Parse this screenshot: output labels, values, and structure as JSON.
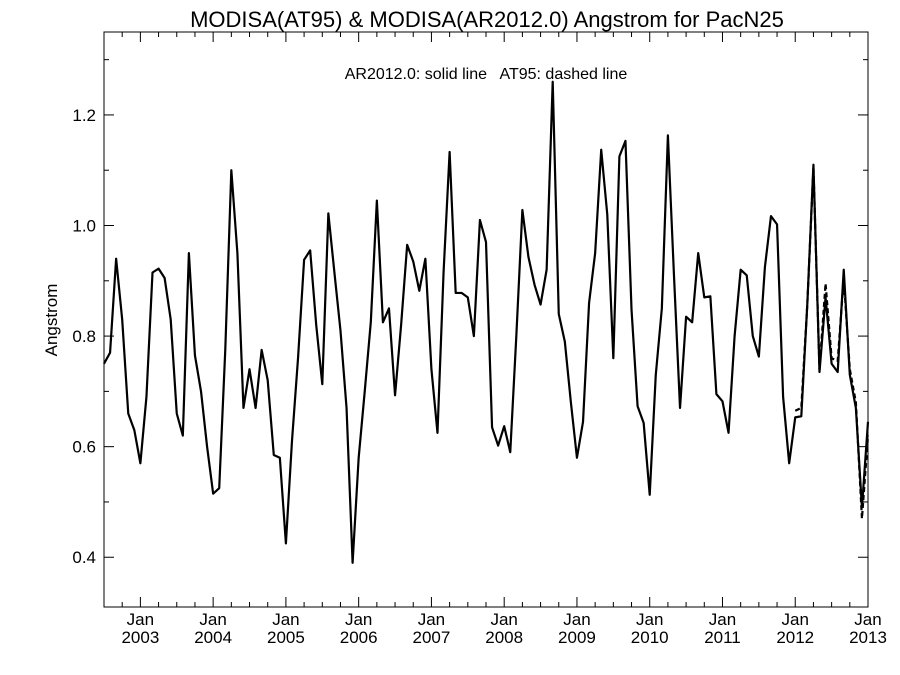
{
  "chart_data": {
    "type": "line",
    "title": "MODISA(AT95) & MODISA(AR2012.0)  Angstrom for PacN25",
    "ylabel": "Angstrom",
    "xlabel": "",
    "annotation": "AR2012.0: solid line   AT95: dashed line",
    "xlim": [
      "2002-07",
      "2013-01"
    ],
    "ylim": [
      0.31,
      1.35
    ],
    "yticks": [
      0.4,
      0.6,
      0.8,
      1.0,
      1.2
    ],
    "ytick_labels": [
      "0.4",
      "0.6",
      "0.8",
      "1.0",
      "1.2"
    ],
    "xtick_month_label": "Jan",
    "xtick_years": [
      "2003",
      "2004",
      "2005",
      "2006",
      "2007",
      "2008",
      "2009",
      "2010",
      "2011",
      "2012",
      "2013"
    ],
    "grid": false,
    "series": [
      {
        "name": "AR2012.0",
        "style": "solid",
        "color": "#000000",
        "start": "2002-07",
        "values": [
          0.75,
          0.77,
          0.94,
          0.83,
          0.66,
          0.63,
          0.57,
          0.69,
          0.915,
          0.922,
          0.905,
          0.83,
          0.66,
          0.62,
          0.95,
          0.765,
          0.7,
          0.6,
          0.515,
          0.525,
          0.775,
          1.1,
          0.95,
          0.67,
          0.74,
          0.67,
          0.775,
          0.72,
          0.585,
          0.58,
          0.425,
          0.61,
          0.76,
          0.938,
          0.955,
          0.82,
          0.713,
          1.022,
          0.915,
          0.81,
          0.67,
          0.39,
          0.58,
          0.7,
          0.825,
          1.045,
          0.825,
          0.85,
          0.693,
          0.82,
          0.965,
          0.935,
          0.882,
          0.94,
          0.74,
          0.625,
          0.915,
          1.133,
          0.878,
          0.878,
          0.87,
          0.8,
          1.01,
          0.97,
          0.635,
          0.602,
          0.637,
          0.59,
          0.8,
          1.028,
          0.943,
          0.893,
          0.857,
          0.92,
          1.26,
          0.84,
          0.79,
          0.68,
          0.58,
          0.645,
          0.86,
          0.95,
          1.137,
          1.02,
          0.76,
          1.125,
          1.153,
          0.848,
          0.673,
          0.643,
          0.513,
          0.73,
          0.85,
          1.163,
          0.91,
          0.67,
          0.835,
          0.825,
          0.95,
          0.87,
          0.872,
          0.695,
          0.682,
          0.625,
          0.8,
          0.92,
          0.91,
          0.8,
          0.763,
          0.925,
          1.017,
          1.002,
          0.69,
          0.57,
          0.653,
          0.655,
          0.86,
          1.11,
          0.735,
          0.87,
          0.75,
          0.735,
          0.92,
          0.73,
          0.67,
          0.49,
          0.645
        ]
      },
      {
        "name": "AT95",
        "style": "dashed",
        "color": "#000000",
        "start": "2012-01",
        "values": [
          0.665,
          0.67,
          0.86,
          1.105,
          0.74,
          0.895,
          0.76,
          0.755,
          0.905,
          0.74,
          0.68,
          0.47,
          0.62
        ]
      }
    ]
  }
}
